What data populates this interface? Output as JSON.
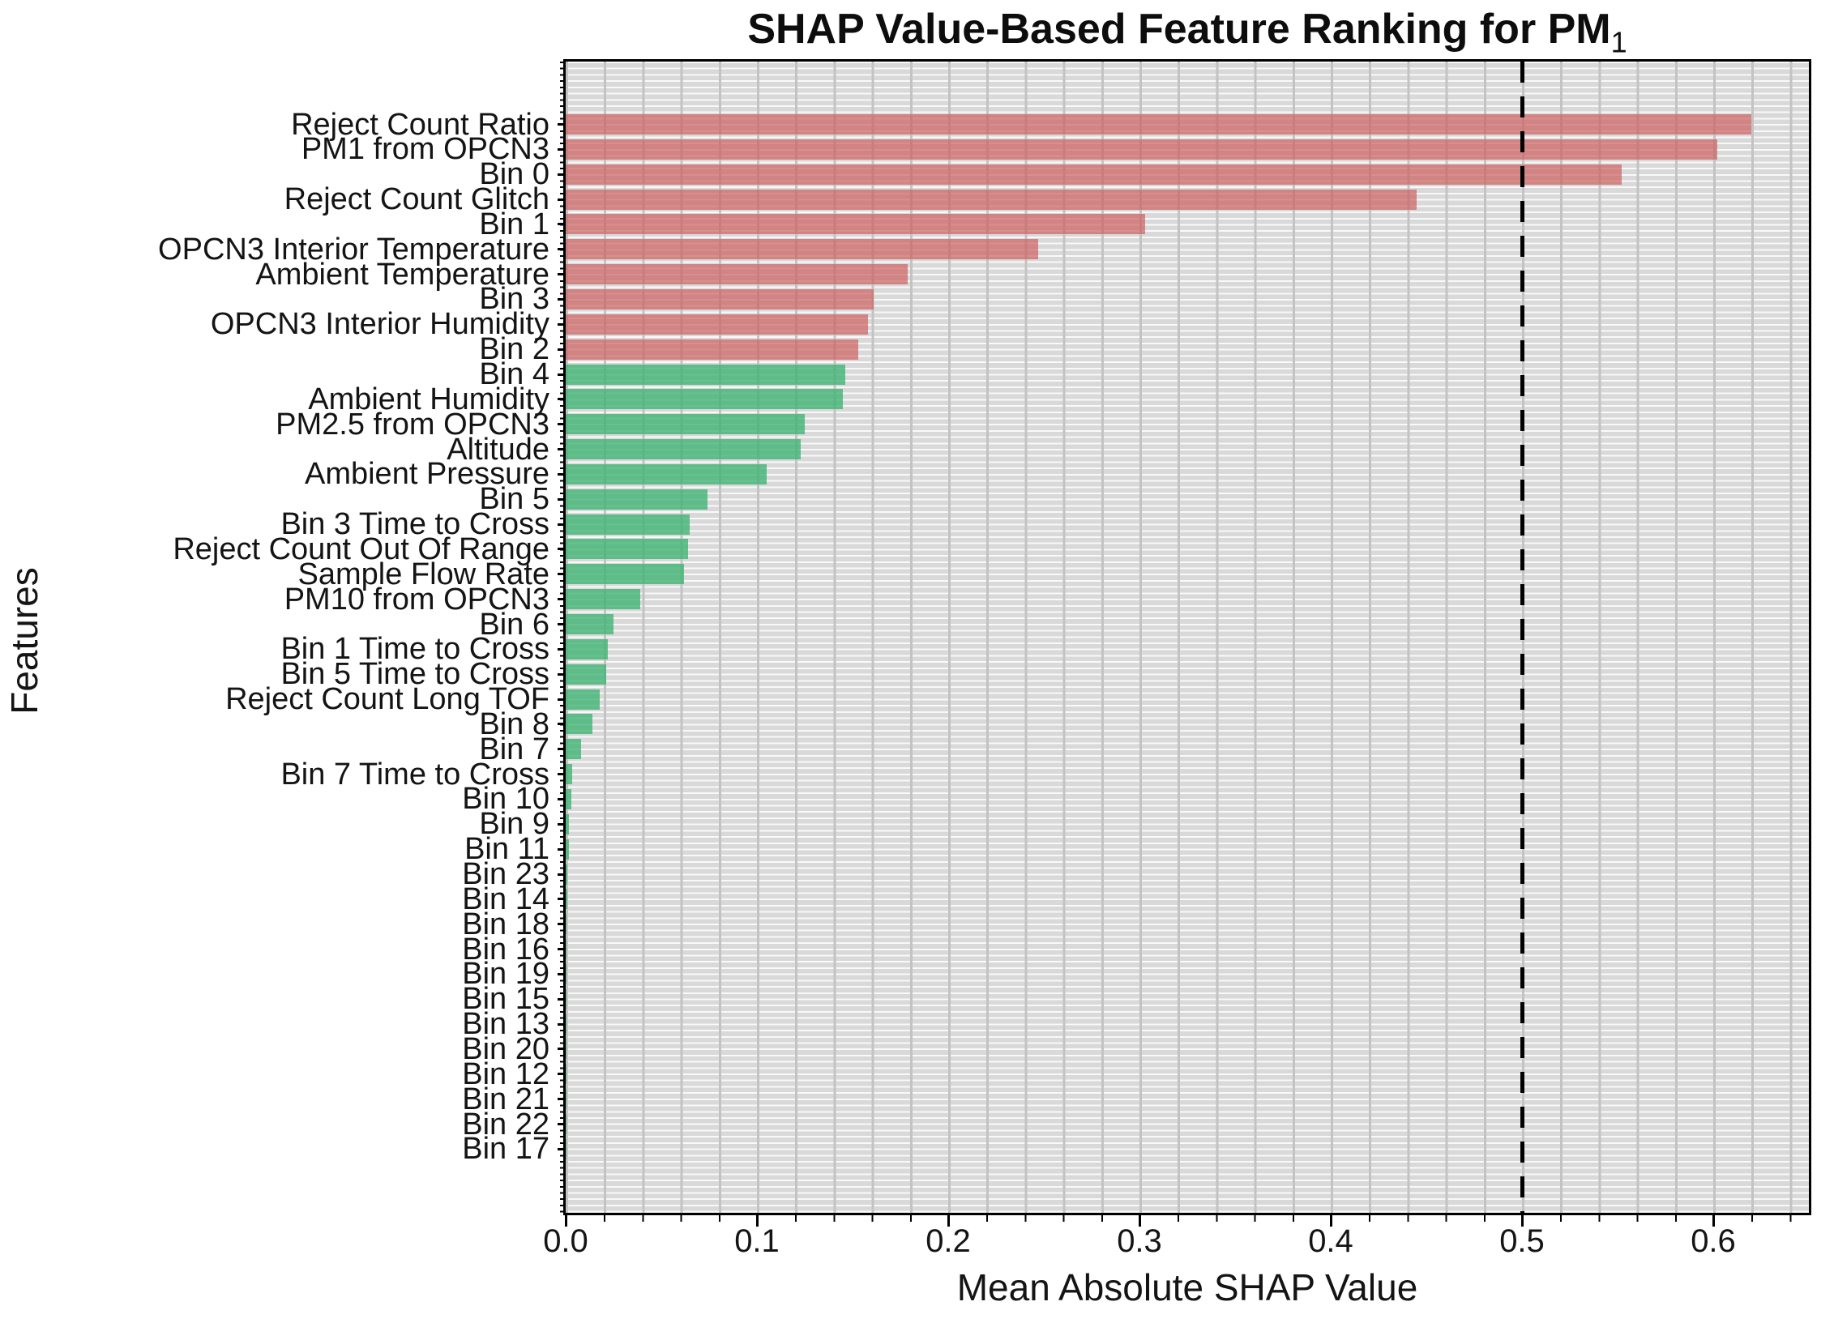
{
  "title": {
    "main": "SHAP Value-Based Feature Ranking for PM",
    "subscript": "1"
  },
  "axes": {
    "xlabel": "Mean Absolute SHAP Value",
    "ylabel": "Features",
    "x_tick_labels": [
      "0.0",
      "0.1",
      "0.2",
      "0.3",
      "0.4",
      "0.5",
      "0.6"
    ]
  },
  "chart_data": {
    "type": "bar",
    "orientation": "horizontal",
    "title": "SHAP Value-Based Feature Ranking for PM1",
    "xlabel": "Mean Absolute SHAP Value",
    "ylabel": "Features",
    "xlim": [
      0,
      0.65
    ],
    "x_tick_values": [
      0.0,
      0.1,
      0.2,
      0.3,
      0.4,
      0.5,
      0.6
    ],
    "grid": "on",
    "threshold_line": {
      "x": 0.5,
      "style": "dashed",
      "color": "#000000"
    },
    "bar_colors": {
      "top_group": "#cd5c5c",
      "bottom_group": "#3cb371"
    },
    "features": [
      {
        "label": "Reject Count Ratio",
        "value": 0.62,
        "group": "red"
      },
      {
        "label": "PM1 from OPCN3",
        "value": 0.602,
        "group": "red"
      },
      {
        "label": "Bin 0",
        "value": 0.552,
        "group": "red"
      },
      {
        "label": "Reject Count Glitch",
        "value": 0.445,
        "group": "red"
      },
      {
        "label": "Bin 1",
        "value": 0.303,
        "group": "red"
      },
      {
        "label": "OPCN3 Interior Temperature",
        "value": 0.247,
        "group": "red"
      },
      {
        "label": "Ambient Temperature",
        "value": 0.179,
        "group": "red"
      },
      {
        "label": "Bin 3",
        "value": 0.161,
        "group": "red"
      },
      {
        "label": "OPCN3 Interior Humidity",
        "value": 0.158,
        "group": "red"
      },
      {
        "label": "Bin 2",
        "value": 0.153,
        "group": "red"
      },
      {
        "label": "Bin 4",
        "value": 0.146,
        "group": "green"
      },
      {
        "label": "Ambient Humidity",
        "value": 0.145,
        "group": "green"
      },
      {
        "label": "PM2.5 from OPCN3",
        "value": 0.125,
        "group": "green"
      },
      {
        "label": "Altitude",
        "value": 0.123,
        "group": "green"
      },
      {
        "label": "Ambient Pressure",
        "value": 0.105,
        "group": "green"
      },
      {
        "label": "Bin 5",
        "value": 0.074,
        "group": "green"
      },
      {
        "label": "Bin 3 Time to Cross",
        "value": 0.065,
        "group": "green"
      },
      {
        "label": "Reject Count Out Of Range",
        "value": 0.064,
        "group": "green"
      },
      {
        "label": "Sample Flow Rate",
        "value": 0.062,
        "group": "green"
      },
      {
        "label": "PM10 from OPCN3",
        "value": 0.039,
        "group": "green"
      },
      {
        "label": "Bin 6",
        "value": 0.025,
        "group": "green"
      },
      {
        "label": "Bin 1 Time to Cross",
        "value": 0.022,
        "group": "green"
      },
      {
        "label": "Bin 5 Time to Cross",
        "value": 0.021,
        "group": "green"
      },
      {
        "label": "Reject Count Long TOF",
        "value": 0.018,
        "group": "green"
      },
      {
        "label": "Bin 8",
        "value": 0.014,
        "group": "green"
      },
      {
        "label": "Bin 7",
        "value": 0.008,
        "group": "green"
      },
      {
        "label": "Bin 7 Time to Cross",
        "value": 0.0034,
        "group": "green"
      },
      {
        "label": "Bin 10",
        "value": 0.003,
        "group": "green"
      },
      {
        "label": "Bin 9",
        "value": 0.0017,
        "group": "green"
      },
      {
        "label": "Bin 11",
        "value": 0.0015,
        "group": "green"
      },
      {
        "label": "Bin 23",
        "value": 0.0008,
        "group": "green"
      },
      {
        "label": "Bin 14",
        "value": 0.0007,
        "group": "green"
      },
      {
        "label": "Bin 18",
        "value": 0.0006,
        "group": "green"
      },
      {
        "label": "Bin 16",
        "value": 0.0005,
        "group": "green"
      },
      {
        "label": "Bin 19",
        "value": 0.0005,
        "group": "green"
      },
      {
        "label": "Bin 15",
        "value": 0.0004,
        "group": "green"
      },
      {
        "label": "Bin 13",
        "value": 0.0004,
        "group": "green"
      },
      {
        "label": "Bin 20",
        "value": 0.0003,
        "group": "green"
      },
      {
        "label": "Bin 12",
        "value": 0.0003,
        "group": "green"
      },
      {
        "label": "Bin 21",
        "value": 0.0002,
        "group": "green"
      },
      {
        "label": "Bin 22",
        "value": 0.0002,
        "group": "green"
      },
      {
        "label": "Bin 17",
        "value": 0.0001,
        "group": "green"
      }
    ]
  }
}
